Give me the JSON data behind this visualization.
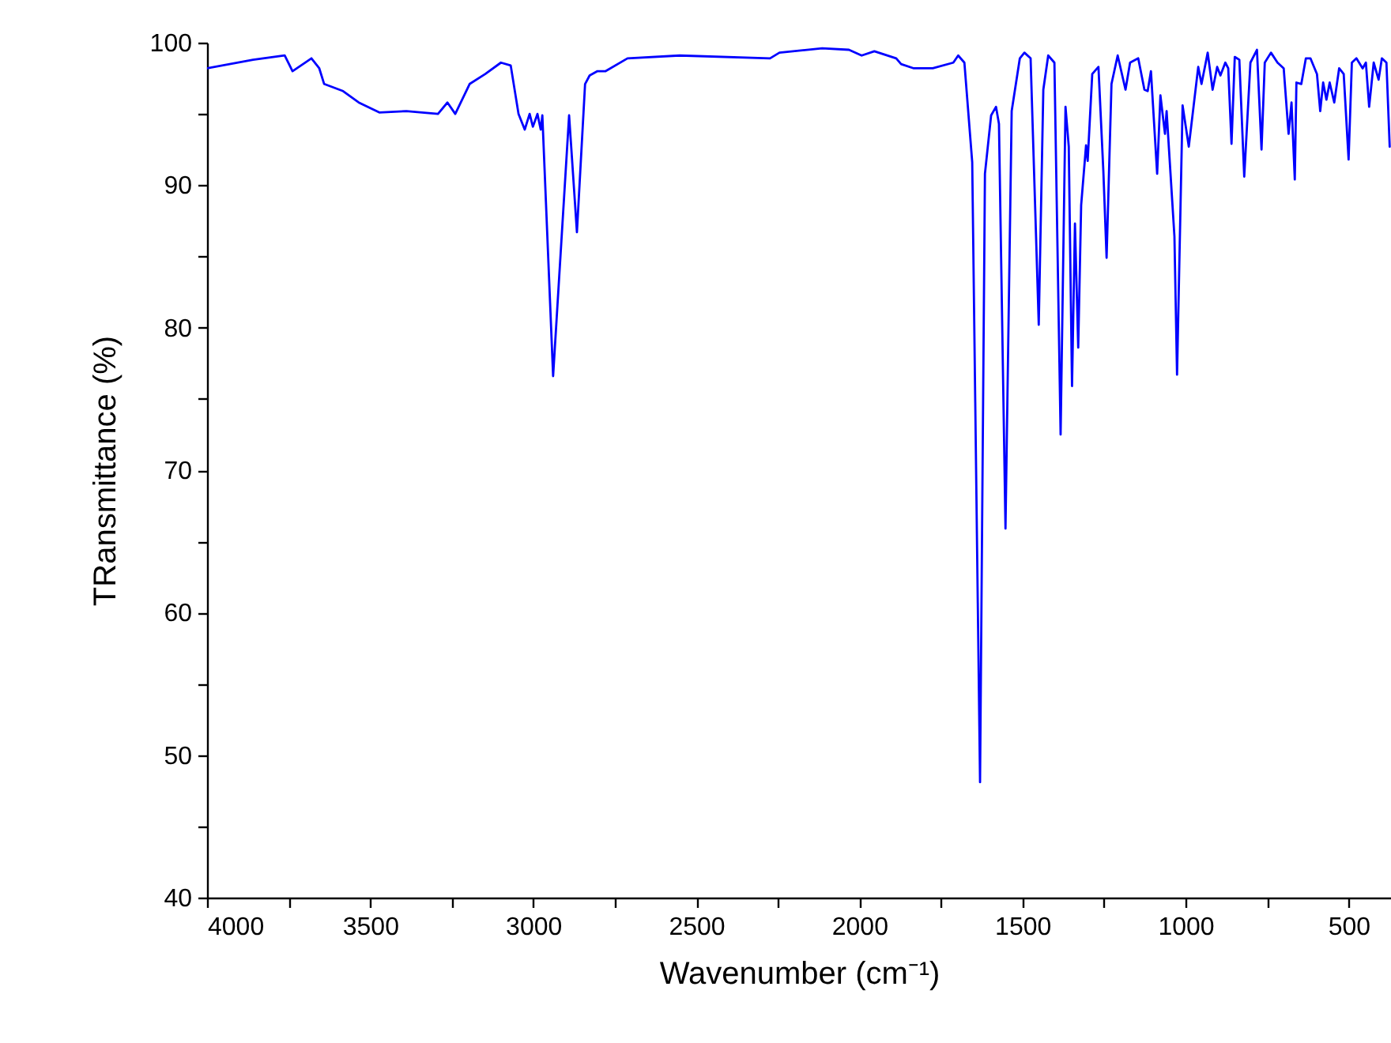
{
  "chart_data": {
    "type": "line",
    "xlabel": "Wavenumber (cm⁻¹)",
    "ylabel": "TRansmittance (%)",
    "xlim": [
      4000,
      370
    ],
    "ylim": [
      40,
      100
    ],
    "xticks": [
      4000,
      {
        "value": 3750,
        "label": null
      },
      3500,
      {
        "value": 3250,
        "label": null
      },
      3000,
      {
        "value": 2750,
        "label": null
      },
      2500,
      {
        "value": 2250,
        "label": null
      },
      2000,
      {
        "value": 1750,
        "label": null
      },
      1500,
      {
        "value": 1250,
        "label": null
      },
      1000,
      {
        "value": 750,
        "label": null
      },
      500
    ],
    "yticks": [
      40,
      {
        "value": 45,
        "label": null
      },
      50,
      {
        "value": 55,
        "label": null
      },
      60,
      {
        "value": 65,
        "label": null
      },
      70,
      {
        "value": 75,
        "label": null
      },
      80,
      {
        "value": 85,
        "label": null
      },
      90,
      {
        "value": 95,
        "label": null
      },
      100
    ],
    "grid": false,
    "marker": "none",
    "line_style": "solid",
    "series": [
      {
        "color": "#0000ff",
        "x": [
          4000,
          3859,
          3762,
          3738,
          3680,
          3656,
          3641,
          3583,
          3535,
          3472,
          3389,
          3341,
          3292,
          3263,
          3239,
          3195,
          3147,
          3099,
          3069,
          3045,
          3026,
          3011,
          3001,
          2987,
          2977,
          2972,
          2939,
          2890,
          2866,
          2841,
          2827,
          2803,
          2778,
          2711,
          2551,
          2274,
          2245,
          2114,
          2032,
          1993,
          1954,
          1887,
          1872,
          1833,
          1775,
          1712,
          1697,
          1678,
          1654,
          1630,
          1615,
          1596,
          1581,
          1572,
          1552,
          1533,
          1508,
          1494,
          1475,
          1450,
          1436,
          1421,
          1402,
          1383,
          1368,
          1358,
          1348,
          1339,
          1329,
          1320,
          1305,
          1300,
          1286,
          1267,
          1252,
          1242,
          1227,
          1208,
          1184,
          1170,
          1145,
          1126,
          1116,
          1106,
          1087,
          1077,
          1063,
          1058,
          1034,
          1026,
          1009,
          990,
          961,
          951,
          932,
          917,
          903,
          893,
          878,
          869,
          859,
          849,
          835,
          820,
          801,
          781,
          767,
          757,
          738,
          718,
          699,
          684,
          675,
          665,
          660,
          645,
          631,
          617,
          597,
          587,
          578,
          568,
          558,
          544,
          529,
          515,
          500,
          490,
          476,
          457,
          447,
          437,
          423,
          408,
          398,
          384,
          374
        ],
        "values": [
          98.2,
          98.8,
          99.1,
          98.0,
          98.9,
          98.2,
          97.1,
          96.6,
          95.8,
          95.1,
          95.2,
          95.1,
          95.0,
          95.8,
          95.0,
          97.1,
          97.8,
          98.6,
          98.4,
          95.0,
          93.9,
          95.0,
          94.1,
          95.0,
          93.9,
          94.9,
          76.6,
          94.9,
          86.7,
          97.1,
          97.7,
          98.0,
          98.0,
          98.9,
          99.1,
          98.9,
          99.3,
          99.6,
          99.5,
          99.1,
          99.4,
          98.9,
          98.5,
          98.2,
          98.2,
          98.6,
          99.1,
          98.6,
          91.6,
          48.1,
          90.8,
          94.9,
          95.5,
          94.3,
          65.9,
          95.2,
          98.9,
          99.3,
          98.9,
          80.2,
          96.7,
          99.1,
          98.6,
          72.5,
          95.5,
          92.7,
          75.9,
          87.3,
          78.6,
          88.6,
          92.8,
          91.7,
          97.8,
          98.3,
          91.0,
          84.9,
          97.1,
          99.1,
          96.7,
          98.6,
          98.9,
          96.7,
          96.6,
          98.0,
          90.8,
          96.3,
          93.6,
          95.2,
          86.4,
          76.7,
          95.6,
          92.7,
          98.3,
          97.1,
          99.3,
          96.7,
          98.3,
          97.7,
          98.6,
          98.2,
          92.9,
          99.0,
          98.8,
          90.6,
          98.6,
          99.5,
          92.5,
          98.6,
          99.3,
          98.6,
          98.2,
          93.6,
          95.8,
          90.4,
          97.2,
          97.1,
          98.9,
          98.9,
          97.8,
          95.2,
          97.2,
          96.0,
          97.2,
          95.8,
          98.2,
          97.8,
          91.8,
          98.6,
          98.9,
          98.2,
          98.6,
          95.5,
          98.6,
          97.4,
          98.9,
          98.6,
          92.7
        ]
      }
    ]
  }
}
